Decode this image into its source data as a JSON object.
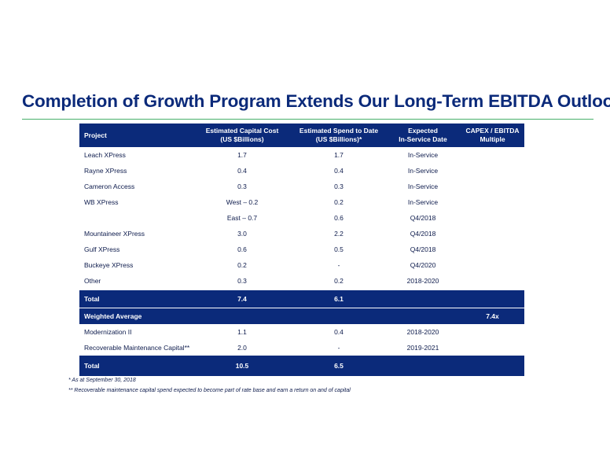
{
  "title": "Completion of Growth Program Extends Our Long-Term EBITDA Outlook",
  "table": {
    "headers": {
      "project": "Project",
      "capital_cost_line1": "Estimated Capital Cost",
      "capital_cost_line2": "(US $Billions)",
      "spend_line1": "Estimated Spend to Date",
      "spend_line2": "(US $Billions)*",
      "service_line1": "Expected",
      "service_line2": "In-Service Date",
      "multiple_line1": "CAPEX / EBITDA",
      "multiple_line2": "Multiple"
    },
    "rows": [
      {
        "project": "Leach XPress",
        "capital_cost": "1.7",
        "spend": "1.7",
        "in_service": "In-Service"
      },
      {
        "project": "Rayne XPress",
        "capital_cost": "0.4",
        "spend": "0.4",
        "in_service": "In-Service"
      },
      {
        "project": "Cameron Access",
        "capital_cost": "0.3",
        "spend": "0.3",
        "in_service": "In-Service"
      },
      {
        "project": "WB XPress",
        "capital_cost": "West – 0.2",
        "spend": "0.2",
        "in_service": "In-Service"
      },
      {
        "project": "",
        "capital_cost": "East – 0.7",
        "spend": "0.6",
        "in_service": "Q4/2018"
      },
      {
        "project": "Mountaineer XPress",
        "capital_cost": "3.0",
        "spend": "2.2",
        "in_service": "Q4/2018"
      },
      {
        "project": "Gulf XPress",
        "capital_cost": "0.6",
        "spend": "0.5",
        "in_service": "Q4/2018"
      },
      {
        "project": "Buckeye XPress",
        "capital_cost": "0.2",
        "spend": "-",
        "in_service": "Q4/2020"
      },
      {
        "project": "Other",
        "capital_cost": "0.3",
        "spend": "0.2",
        "in_service": "2018-2020"
      }
    ],
    "total": {
      "label": "Total",
      "capital_cost": "7.4",
      "spend": "6.1"
    },
    "weighted_average": {
      "label": "Weighted Average",
      "multiple": "7.4x"
    },
    "rows2": [
      {
        "project": "Modernization II",
        "capital_cost": "1.1",
        "spend": "0.4",
        "in_service": "2018-2020"
      },
      {
        "project": "Recoverable Maintenance Capital**",
        "capital_cost": "2.0",
        "spend": "-",
        "in_service": "2019-2021"
      }
    ],
    "grand_total": {
      "label": "Total",
      "capital_cost": "10.5",
      "spend": "6.5"
    }
  },
  "footnotes": [
    "*   As at September 30, 2018",
    "** Recoverable maintenance capital spend expected to become part of rate base and earn a return on and of capital"
  ]
}
